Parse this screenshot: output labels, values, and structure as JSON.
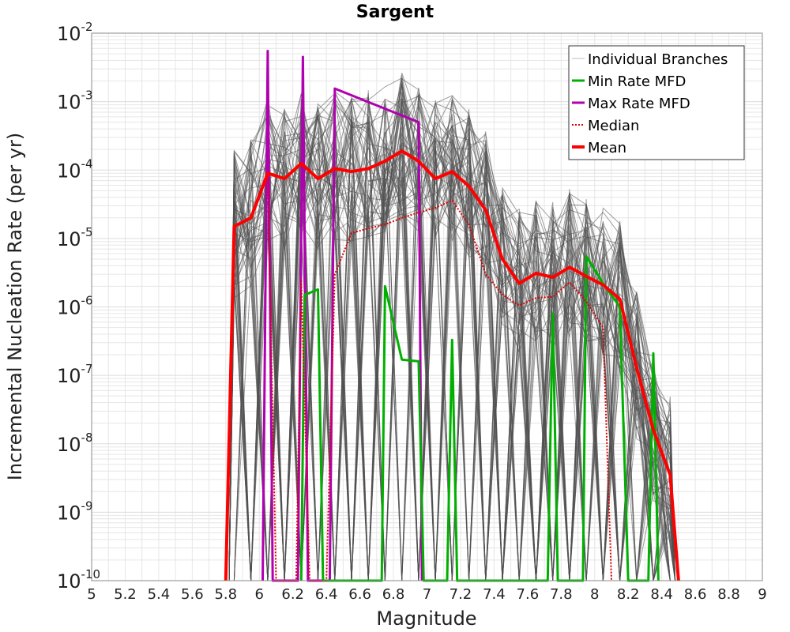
{
  "chart_data": {
    "type": "line",
    "title": "Sargent",
    "xlabel": "Magnitude",
    "ylabel": "Incremental Nucleation Rate (per yr)",
    "xlim": [
      5,
      9
    ],
    "ylim": [
      1e-10,
      0.01
    ],
    "yscale": "log",
    "grid": true,
    "legend_position": "top-right",
    "x_ticks": [
      "5",
      "5.2",
      "5.4",
      "5.6",
      "5.8",
      "6",
      "6.2",
      "6.4",
      "6.6",
      "6.8",
      "7",
      "7.2",
      "7.4",
      "7.6",
      "7.8",
      "8",
      "8.2",
      "8.4",
      "8.6",
      "8.8",
      "9"
    ],
    "y_ticks": [
      {
        "value": 0.01,
        "base": "10",
        "exp": "-2"
      },
      {
        "value": 0.001,
        "base": "10",
        "exp": "-3"
      },
      {
        "value": 0.0001,
        "base": "10",
        "exp": "-4"
      },
      {
        "value": 1e-05,
        "base": "10",
        "exp": "-5"
      },
      {
        "value": 1e-06,
        "base": "10",
        "exp": "-6"
      },
      {
        "value": 1e-07,
        "base": "10",
        "exp": "-7"
      },
      {
        "value": 1e-08,
        "base": "10",
        "exp": "-8"
      },
      {
        "value": 1e-09,
        "base": "10",
        "exp": "-9"
      },
      {
        "value": 1e-10,
        "base": "10",
        "exp": "-10"
      }
    ],
    "colors": {
      "individual": "#505050",
      "min": "#00b000",
      "max": "#b000b0",
      "median": "#e00000",
      "mean": "#ff0000",
      "grid": "#e6e6e6"
    },
    "series": [
      {
        "name": "Mean",
        "style": "solid",
        "x": [
          5.8,
          5.85,
          5.95,
          6.05,
          6.15,
          6.25,
          6.35,
          6.45,
          6.55,
          6.65,
          6.75,
          6.85,
          6.95,
          7.05,
          7.15,
          7.25,
          7.35,
          7.45,
          7.55,
          7.65,
          7.75,
          7.85,
          7.95,
          8.05,
          8.15,
          8.25,
          8.35,
          8.45,
          8.5
        ],
        "y": [
          1e-10,
          1.5e-05,
          2e-05,
          9e-05,
          7.5e-05,
          0.000125,
          7.5e-05,
          0.000105,
          9.5e-05,
          0.000105,
          0.000135,
          0.00019,
          0.000135,
          7.5e-05,
          9.5e-05,
          5.8e-05,
          2.6e-05,
          5e-06,
          2.2e-06,
          3.1e-06,
          2.7e-06,
          3.8e-06,
          2.8e-06,
          2.1e-06,
          1.3e-06,
          1.3e-07,
          1.6e-08,
          3.5e-09,
          1e-10
        ]
      },
      {
        "name": "Median",
        "style": "dotted",
        "x": [
          5.8,
          5.85,
          5.95,
          6.05,
          6.1,
          6.22,
          6.25,
          6.3,
          6.4,
          6.45,
          6.55,
          6.65,
          6.75,
          6.85,
          6.95,
          7.05,
          7.15,
          7.25,
          7.35,
          7.45,
          7.55,
          7.65,
          7.75,
          7.85,
          7.95,
          8.05,
          8.1
        ],
        "y": [
          1e-10,
          1.5e-05,
          2e-05,
          9e-05,
          1e-10,
          1e-10,
          2.5e-06,
          1e-10,
          1e-10,
          3e-06,
          1.2e-05,
          1.4e-05,
          1.6e-05,
          2e-05,
          2.4e-05,
          2.8e-05,
          3.6e-05,
          1.6e-05,
          3e-06,
          1.5e-06,
          1.05e-06,
          1.35e-06,
          1.4e-06,
          2.3e-06,
          1.2e-06,
          5e-07,
          1e-10
        ]
      },
      {
        "name": "Min Rate MFD",
        "style": "solid",
        "x": [
          6.25,
          6.27,
          6.3,
          6.35,
          6.38,
          6.73,
          6.75,
          6.85,
          6.95,
          6.98,
          7.12,
          7.15,
          7.18,
          7.72,
          7.75,
          7.78,
          7.93,
          7.95,
          8.05,
          8.15,
          8.2,
          8.32,
          8.35,
          8.38
        ],
        "y": [
          1e-10,
          1.5e-06,
          1.6e-06,
          1.8e-06,
          1e-10,
          1e-10,
          2e-06,
          1.7e-07,
          1.6e-07,
          1e-10,
          1e-10,
          3.3e-07,
          1e-10,
          1e-10,
          8e-07,
          1e-10,
          1e-10,
          5.5e-06,
          2.2e-06,
          1e-06,
          1e-10,
          1e-10,
          2.1e-07,
          1e-10
        ]
      },
      {
        "name": "Max Rate MFD",
        "style": "solid",
        "x": [
          6.02,
          6.05,
          6.08,
          6.23,
          6.26,
          6.29,
          6.42,
          6.45,
          6.95,
          6.97
        ],
        "y": [
          1e-10,
          0.0055,
          1e-10,
          1e-10,
          0.0045,
          1e-10,
          1e-10,
          0.00155,
          0.0005,
          1e-10
        ]
      }
    ],
    "legend": [
      {
        "key": "individual",
        "label": "Individual Branches"
      },
      {
        "key": "min",
        "label": "Min Rate MFD"
      },
      {
        "key": "max",
        "label": "Max Rate MFD"
      },
      {
        "key": "median",
        "label": "Median"
      },
      {
        "key": "mean",
        "label": "Mean"
      }
    ]
  }
}
